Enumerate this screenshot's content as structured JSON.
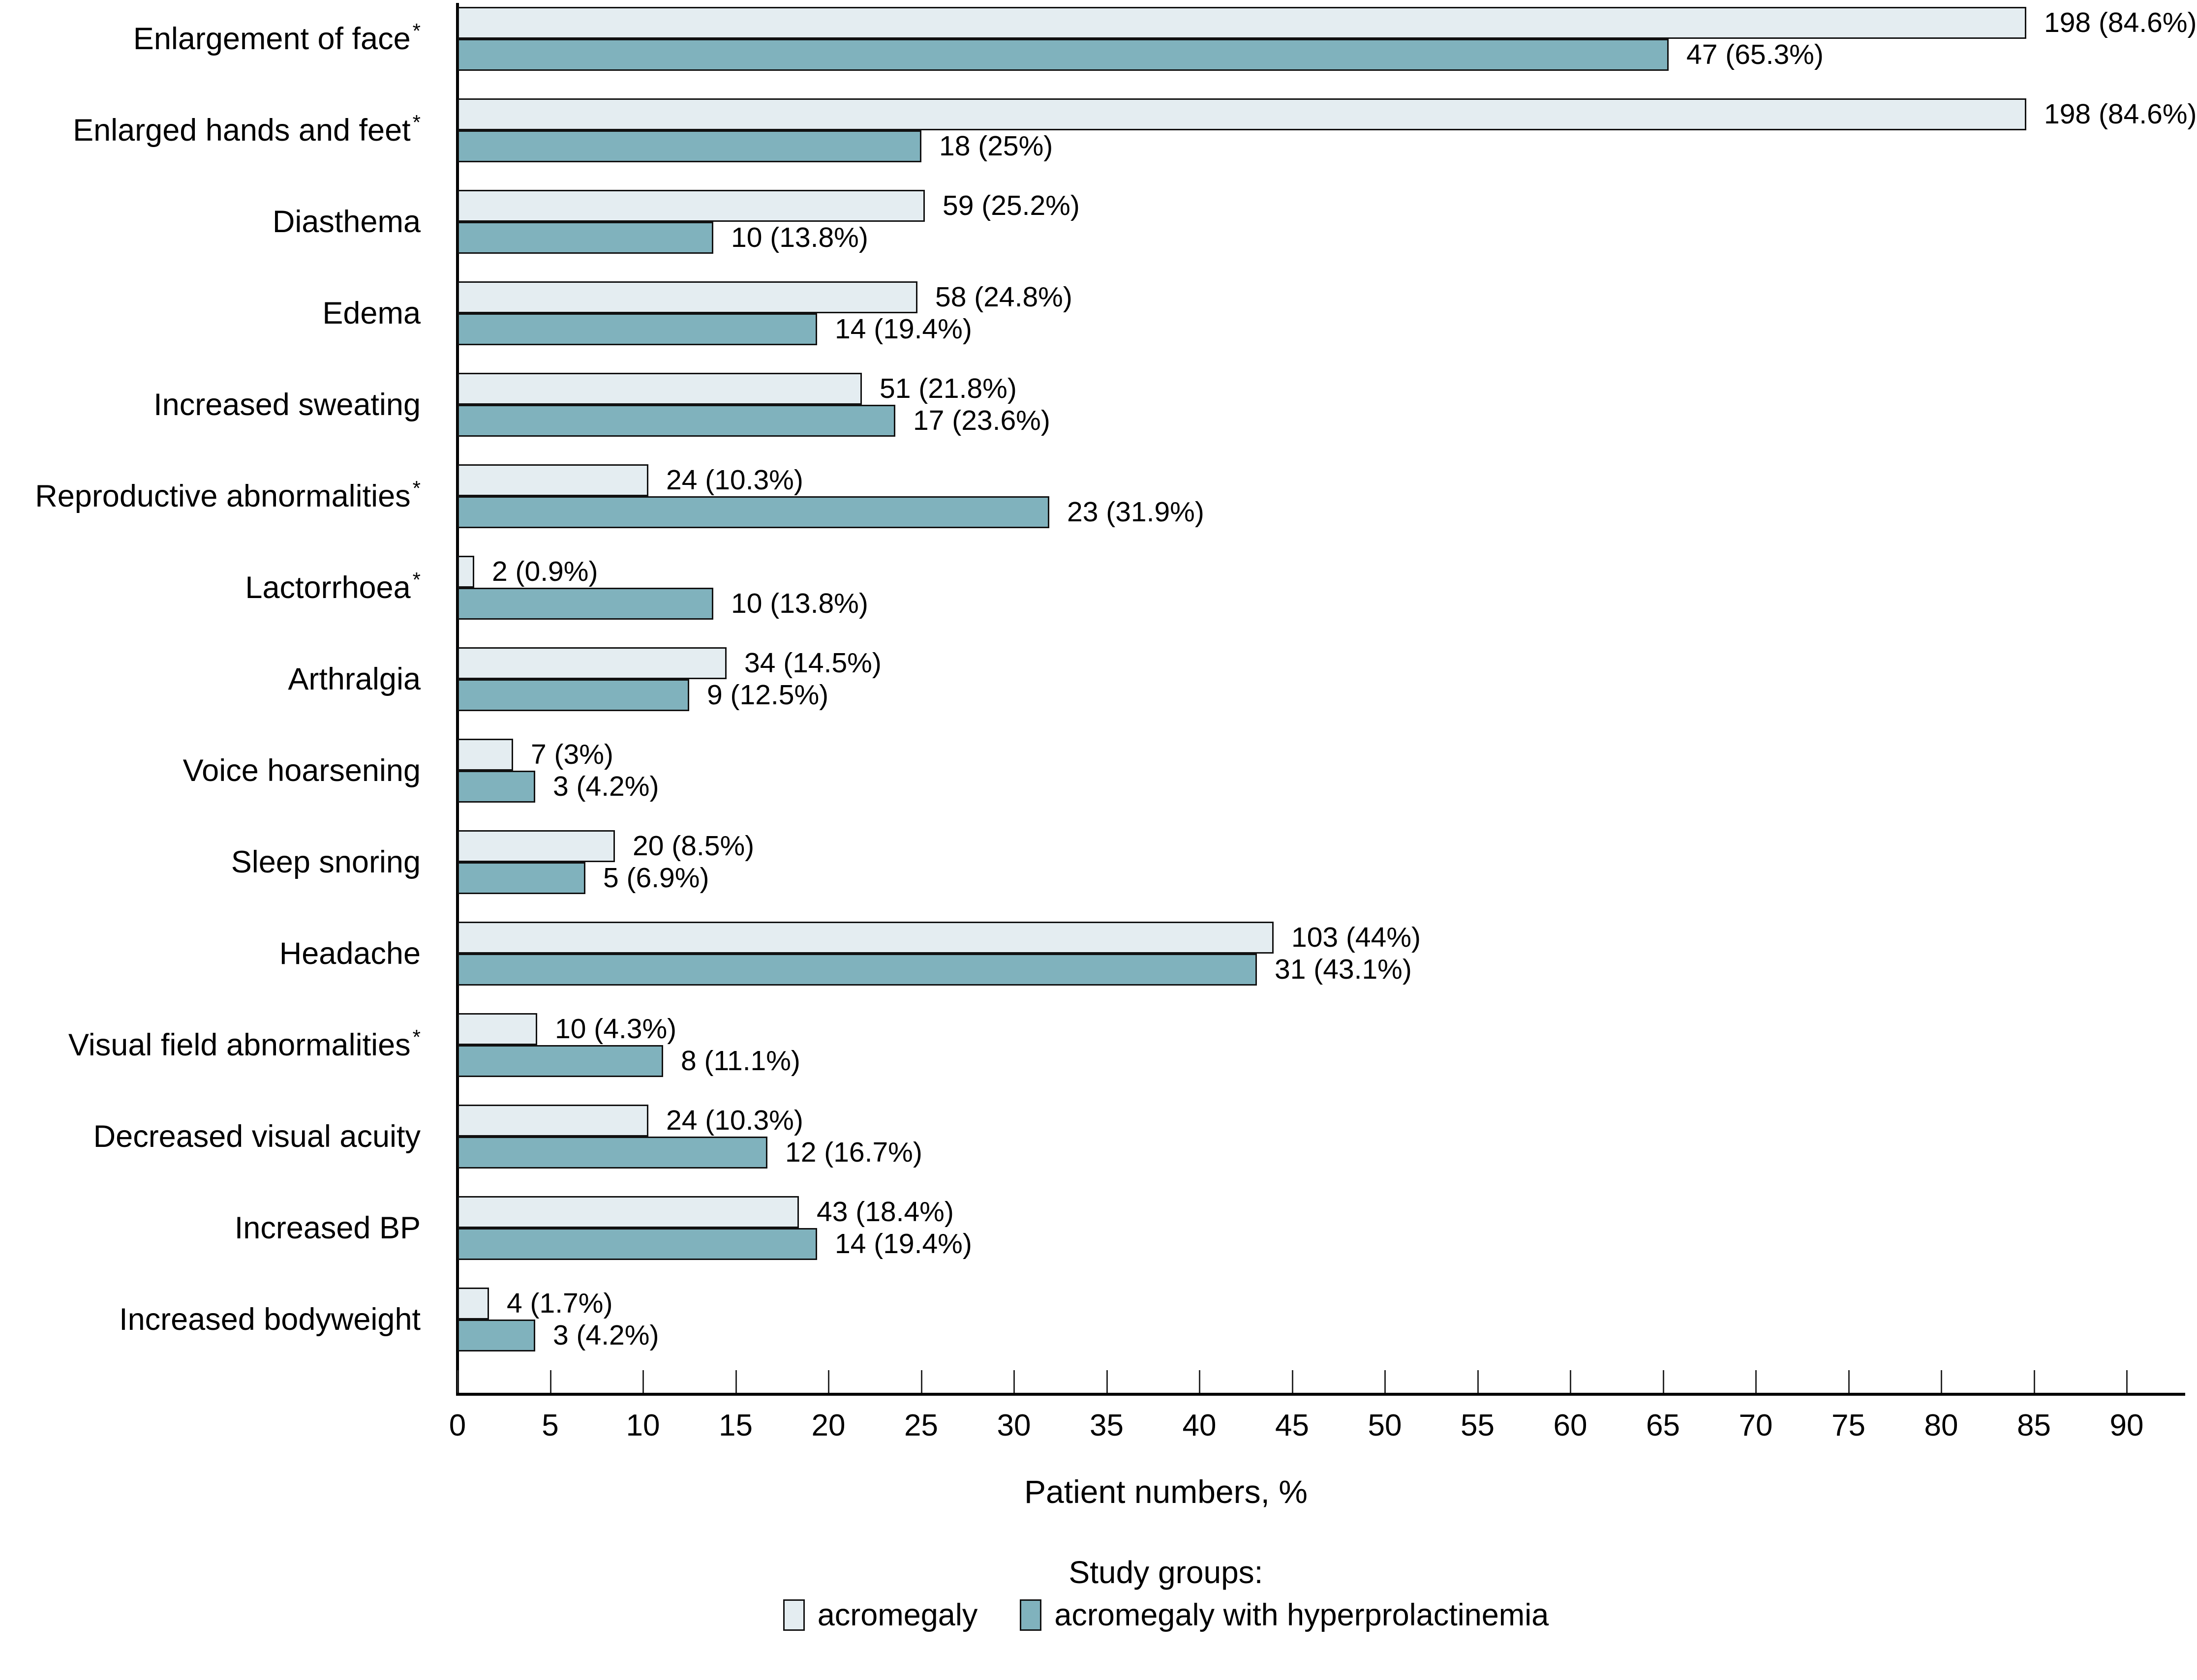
{
  "chart_data": {
    "type": "bar",
    "orientation": "horizontal",
    "title": "",
    "xlabel": "Patient numbers, %",
    "ylabel": "",
    "xlim": [
      0,
      93
    ],
    "xticks": [
      0,
      5,
      10,
      15,
      20,
      25,
      30,
      35,
      40,
      45,
      50,
      55,
      60,
      65,
      70,
      75,
      80,
      85,
      90
    ],
    "grid": false,
    "legend_title": "Study groups:",
    "legend_position": "bottom-center",
    "categories": [
      {
        "label": "Enlargement of face",
        "asterisk": true
      },
      {
        "label": "Enlarged hands and feet",
        "asterisk": true
      },
      {
        "label": "Diasthema",
        "asterisk": false
      },
      {
        "label": "Edema",
        "asterisk": false
      },
      {
        "label": "Increased sweating",
        "asterisk": false
      },
      {
        "label": "Reproductive abnormalities",
        "asterisk": true
      },
      {
        "label": "Lactorrhoea",
        "asterisk": true
      },
      {
        "label": "Arthralgia",
        "asterisk": false
      },
      {
        "label": "Voice hoarsening",
        "asterisk": false
      },
      {
        "label": "Sleep snoring",
        "asterisk": false
      },
      {
        "label": "Headache",
        "asterisk": false
      },
      {
        "label": "Visual field abnormalities",
        "asterisk": true
      },
      {
        "label": "Decreased visual acuity",
        "asterisk": false
      },
      {
        "label": "Increased BP",
        "asterisk": false
      },
      {
        "label": "Increased bodyweight",
        "asterisk": false
      }
    ],
    "series": [
      {
        "name": "acromegaly",
        "color": "#e4edf1",
        "counts": [
          198,
          198,
          59,
          58,
          51,
          24,
          2,
          34,
          7,
          20,
          103,
          10,
          24,
          43,
          4
        ],
        "pct": [
          84.6,
          84.6,
          25.2,
          24.8,
          21.8,
          10.3,
          0.9,
          14.5,
          3,
          8.5,
          44,
          4.3,
          10.3,
          18.4,
          1.7
        ],
        "value_labels": [
          "198 (84.6%)",
          "198 (84.6%)",
          "59 (25.2%)",
          "58 (24.8%)",
          "51 (21.8%)",
          "24 (10.3%)",
          "2 (0.9%)",
          "34 (14.5%)",
          "7 (3%)",
          "20 (8.5%)",
          "103 (44%)",
          "10 (4.3%)",
          "24 (10.3%)",
          "43 (18.4%)",
          "4 (1.7%)"
        ]
      },
      {
        "name": "acromegaly with hyperprolactinemia",
        "color": "#80b2bd",
        "counts": [
          47,
          18,
          10,
          14,
          17,
          23,
          10,
          9,
          3,
          5,
          31,
          8,
          12,
          14,
          3
        ],
        "pct": [
          65.3,
          25,
          13.8,
          19.4,
          23.6,
          31.9,
          13.8,
          12.5,
          4.2,
          6.9,
          43.1,
          11.1,
          16.7,
          19.4,
          4.2
        ],
        "value_labels": [
          "47 (65.3%)",
          "18 (25%)",
          "10 (13.8%)",
          "14 (19.4%)",
          "17 (23.6%)",
          "23 (31.9%)",
          "10 (13.8%)",
          "9 (12.5%)",
          "3 (4.2%)",
          "5 (6.9%)",
          "31 (43.1%)",
          "8 (11.1%)",
          "12 (16.7%)",
          "14 (19.4%)",
          "3 (4.2%)"
        ]
      }
    ]
  },
  "colors": {
    "background": "#ffffff",
    "bar_border": "#111111",
    "axis": "#000000",
    "text": "#000000",
    "series_acromegaly": "#e4edf1",
    "series_hyperprolactinemia": "#80b2bd"
  }
}
